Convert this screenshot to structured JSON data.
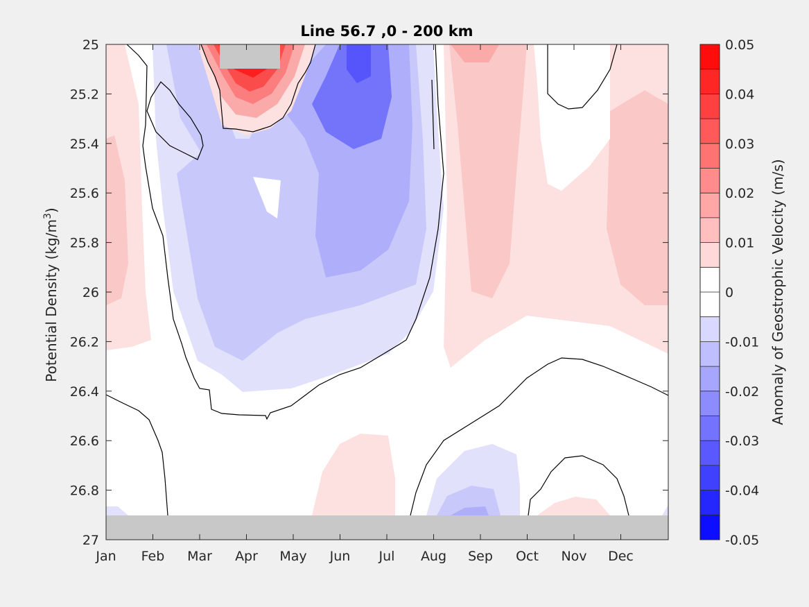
{
  "chart_data": {
    "type": "contourf",
    "title": "Line 56.7 ,0 - 200 km",
    "xlabel": "",
    "ylabel": "Potential Density (kg/m",
    "ylabel_sup": "3",
    "ylabel_close": ")",
    "colorbar_label": "Anomaly of Geostrophic Velocity (m/s)",
    "x_ticks": [
      "Jan",
      "Feb",
      "Mar",
      "Apr",
      "May",
      "Jun",
      "Jul",
      "Aug",
      "Sep",
      "Oct",
      "Nov",
      "Dec"
    ],
    "y_ticks": [
      "25",
      "25.2",
      "25.4",
      "25.6",
      "25.8",
      "26",
      "26.2",
      "26.4",
      "26.6",
      "26.8",
      "27"
    ],
    "ylim": [
      25,
      27
    ],
    "y_reversed": true,
    "clim": [
      -0.05,
      0.05
    ],
    "colorbar_ticks": [
      "0.05",
      "0.04",
      "0.03",
      "0.02",
      "0.01",
      "0",
      "-0.01",
      "-0.02",
      "-0.03",
      "-0.04",
      "-0.05"
    ],
    "colorbar_levels": [
      -0.05,
      -0.045,
      -0.04,
      -0.035,
      -0.03,
      -0.025,
      -0.02,
      -0.015,
      -0.01,
      -0.005,
      0,
      0.005,
      0.01,
      0.015,
      0.02,
      0.025,
      0.03,
      0.035,
      0.04,
      0.045,
      0.05
    ],
    "colormap": "blue-white-red",
    "missing_color": "#c8c8c8",
    "features": [
      {
        "label": "strong positive core near surface",
        "x_range": [
          "Mar",
          "May"
        ],
        "y_range": [
          25.0,
          25.35
        ],
        "peak_value": 0.05
      },
      {
        "label": "negative anomaly",
        "x_range": [
          "Feb",
          "Aug"
        ],
        "y_range": [
          25.0,
          26.45
        ],
        "peak_value": -0.03
      },
      {
        "label": "positive anomaly",
        "x_range": [
          "Aug",
          "Dec"
        ],
        "y_range": [
          25.0,
          26.3
        ],
        "peak_value": 0.02
      },
      {
        "label": "positive anomaly",
        "x_range": [
          "Jan",
          "Feb"
        ],
        "y_range": [
          25.0,
          26.2
        ],
        "peak_value": 0.015
      },
      {
        "label": "deep negative anomaly",
        "x_range": [
          "Aug",
          "Oct"
        ],
        "y_range": [
          26.6,
          26.9
        ],
        "peak_value": -0.02
      }
    ],
    "colors": {
      "axes_bg": "#ffffff",
      "figure_bg": "#f0f0f0",
      "contour_line": "#000000"
    }
  }
}
